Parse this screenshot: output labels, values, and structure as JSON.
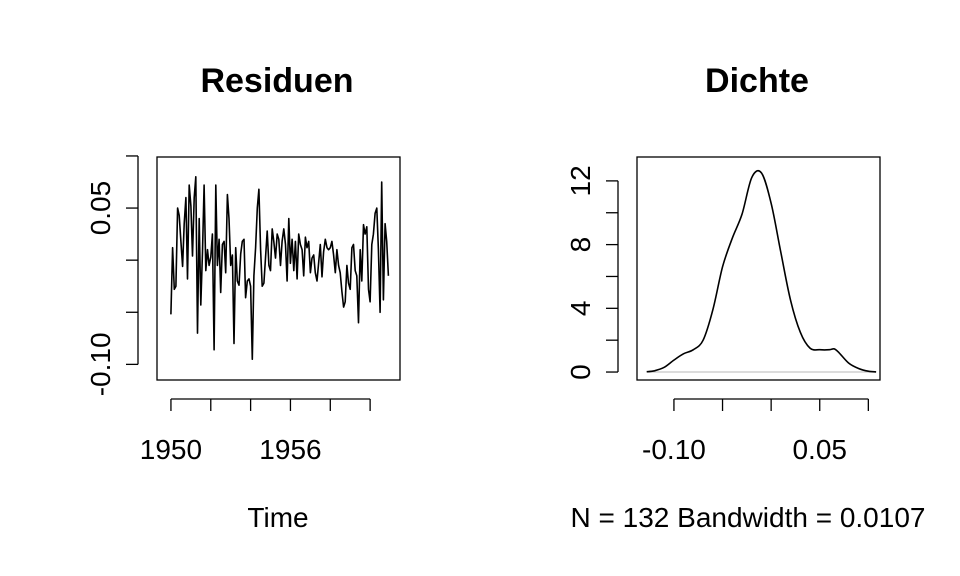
{
  "chart_data": [
    {
      "type": "line",
      "title": "Residuen",
      "xlabel": "Time",
      "ylabel": "",
      "xlim": [
        1949.3,
        1961.5
      ],
      "ylim": [
        -0.115,
        0.099
      ],
      "x_ticks": [
        1950,
        1952,
        1954,
        1956,
        1958,
        1960
      ],
      "x_tick_labels": [
        "1950",
        "",
        "",
        "1956",
        "",
        ""
      ],
      "y_ticks": [
        -0.1,
        -0.05,
        0.0,
        0.05,
        0.1
      ],
      "y_tick_labels": [
        "-0.10",
        "",
        "",
        "0.05",
        ""
      ],
      "grid": false,
      "x_start": 1950,
      "x_step": 0.08333,
      "values": [
        -0.052,
        0.012,
        -0.028,
        -0.025,
        0.05,
        0.043,
        0.018,
        -0.006,
        0.035,
        0.06,
        -0.018,
        0.072,
        0.052,
        0.004,
        0.06,
        0.08,
        -0.07,
        0.04,
        -0.043,
        0.008,
        0.072,
        -0.01,
        0.01,
        -0.005,
        0.003,
        0.025,
        -0.086,
        0.072,
        -0.005,
        0.02,
        -0.031,
        0.015,
        0.018,
        -0.012,
        0.063,
        0.04,
        -0.005,
        0.005,
        -0.08,
        0.012,
        -0.02,
        -0.024,
        0.006,
        0.018,
        0.02,
        -0.036,
        -0.02,
        -0.018,
        -0.025,
        -0.095,
        -0.015,
        0.012,
        0.05,
        0.068,
        0.01,
        -0.025,
        -0.022,
        0.002,
        0.028,
        -0.005,
        -0.01,
        0.03,
        0.018,
        0.002,
        0.025,
        0.02,
        -0.005,
        0.018,
        0.03,
        0.015,
        -0.02,
        0.04,
        -0.003,
        0.02,
        -0.01,
        0.018,
        -0.018,
        0.025,
        0.015,
        0.01,
        -0.015,
        0.022,
        0.012,
        0.018,
        -0.012,
        0.002,
        0.005,
        -0.012,
        -0.02,
        -0.002,
        0.015,
        -0.016,
        0.008,
        0.02,
        0.012,
        0.01,
        0.012,
        0.018,
        0.005,
        -0.012,
        0.01,
        -0.005,
        -0.012,
        -0.03,
        -0.045,
        -0.04,
        -0.005,
        -0.022,
        -0.028,
        0.012,
        0.015,
        -0.01,
        -0.015,
        -0.06,
        0.01,
        -0.02,
        0.034,
        0.025,
        0.032,
        -0.028,
        -0.04,
        0.015,
        0.025,
        0.045,
        0.05,
        0.01,
        -0.05,
        0.075,
        -0.038,
        0.035,
        0.018,
        -0.015
      ]
    },
    {
      "type": "area",
      "title": "Dichte",
      "xlabel": "N = 132   Bandwidth = 0.0107",
      "ylabel": "",
      "xlim": [
        -0.138,
        0.112
      ],
      "ylim": [
        -0.5,
        13.5
      ],
      "x_ticks": [
        -0.1,
        -0.05,
        0.0,
        0.05,
        0.1
      ],
      "x_tick_labels": [
        "-0.10",
        "",
        "",
        "0.05",
        ""
      ],
      "y_ticks": [
        0,
        2,
        4,
        6,
        8,
        10,
        12
      ],
      "y_tick_labels": [
        "0",
        "",
        "4",
        "",
        "8",
        "",
        "12"
      ],
      "grid": false,
      "x": [
        -0.128,
        -0.12,
        -0.11,
        -0.1,
        -0.09,
        -0.08,
        -0.07,
        -0.06,
        -0.05,
        -0.04,
        -0.03,
        -0.02,
        -0.01,
        0.0,
        0.01,
        0.02,
        0.03,
        0.04,
        0.05,
        0.06,
        0.065,
        0.07,
        0.08,
        0.09,
        0.1,
        0.108
      ],
      "y": [
        0.02,
        0.08,
        0.3,
        0.75,
        1.15,
        1.4,
        2.0,
        3.9,
        6.6,
        8.4,
        9.9,
        12.2,
        12.5,
        10.6,
        7.5,
        4.5,
        2.5,
        1.5,
        1.4,
        1.4,
        1.45,
        1.2,
        0.55,
        0.22,
        0.05,
        0.01
      ]
    }
  ]
}
